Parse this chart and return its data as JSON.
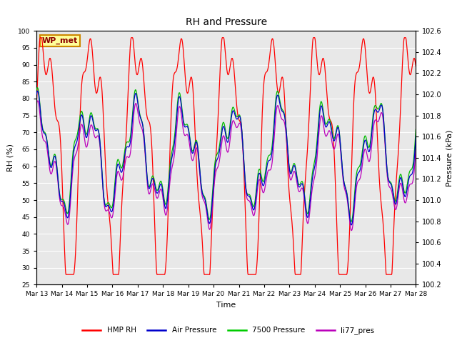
{
  "title": "RH and Pressure",
  "xlabel": "Time",
  "ylabel_left": "RH (%)",
  "ylabel_right": "Pressure (kPa)",
  "ylim_left": [
    25,
    100
  ],
  "ylim_right": [
    100.2,
    102.6
  ],
  "xtick_labels": [
    "Mar 13",
    "Mar 14",
    "Mar 15",
    "Mar 16",
    "Mar 17",
    "Mar 18",
    "Mar 19",
    "Mar 20",
    "Mar 21",
    "Mar 22",
    "Mar 23",
    "Mar 24",
    "Mar 25",
    "Mar 26",
    "Mar 27",
    "Mar 28"
  ],
  "yticks_left": [
    25,
    30,
    35,
    40,
    45,
    50,
    55,
    60,
    65,
    70,
    75,
    80,
    85,
    90,
    95,
    100
  ],
  "yticks_right": [
    100.2,
    100.4,
    100.6,
    100.8,
    101.0,
    101.2,
    101.4,
    101.6,
    101.8,
    102.0,
    102.2,
    102.4,
    102.6
  ],
  "legend_labels": [
    "HMP RH",
    "Air Pressure",
    "7500 Pressure",
    "li77_pres"
  ],
  "legend_colors": [
    "#ff0000",
    "#0000cc",
    "#00cc00",
    "#bb00bb"
  ],
  "line_colors_rh": "#ff0000",
  "line_colors_air": "#0000cc",
  "line_colors_p7500": "#00bb00",
  "line_colors_li77": "#bb00bb",
  "annotation_text": "WP_met",
  "annotation_bg": "#ffff99",
  "annotation_border": "#cc8800",
  "plot_bg": "#e8e8e8",
  "fig_bg": "#ffffff",
  "grid_color": "#ffffff"
}
